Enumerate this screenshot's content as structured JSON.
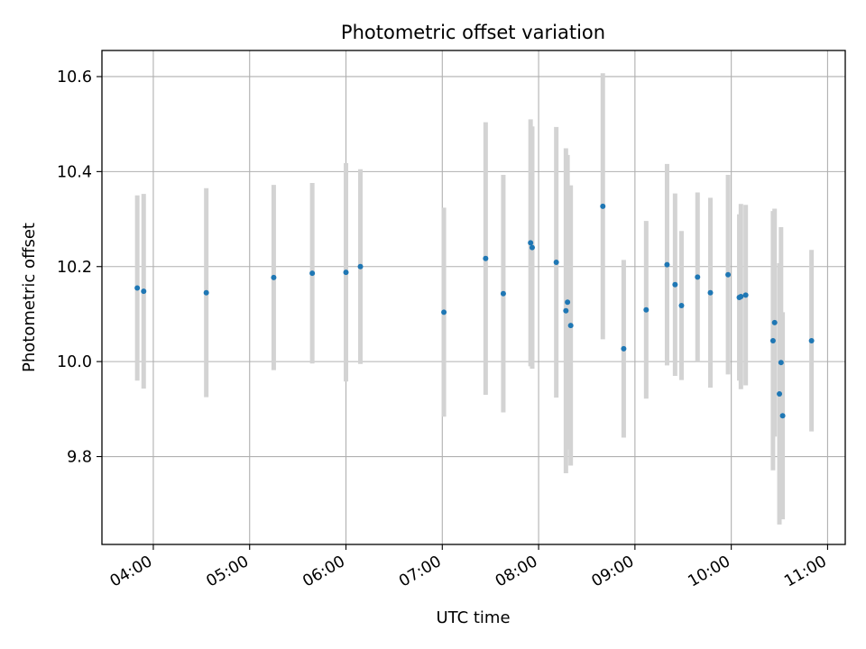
{
  "chart_data": {
    "type": "scatter",
    "title": "Photometric offset variation",
    "xlabel": "UTC time",
    "ylabel": "Photometric offset",
    "x_ticks": [
      "04:00",
      "05:00",
      "06:00",
      "07:00",
      "08:00",
      "09:00",
      "10:00",
      "11:00"
    ],
    "y_ticks": [
      "9.8",
      "10.0",
      "10.2",
      "10.4",
      "10.6"
    ],
    "xlim": [
      "03:28",
      "11:11"
    ],
    "ylim": [
      9.615,
      10.655
    ],
    "grid": true,
    "marker_color": "#1f77b4",
    "errorbar_color": "#d3d3d3",
    "points": [
      {
        "x": "03:50",
        "y": 10.155,
        "err": 0.195
      },
      {
        "x": "03:54",
        "y": 10.148,
        "err": 0.205
      },
      {
        "x": "04:33",
        "y": 10.145,
        "err": 0.22
      },
      {
        "x": "05:15",
        "y": 10.177,
        "err": 0.195
      },
      {
        "x": "05:39",
        "y": 10.186,
        "err": 0.19
      },
      {
        "x": "06:00",
        "y": 10.188,
        "err": 0.23
      },
      {
        "x": "06:09",
        "y": 10.2,
        "err": 0.205
      },
      {
        "x": "07:01",
        "y": 10.104,
        "err": 0.22
      },
      {
        "x": "07:27",
        "y": 10.217,
        "err": 0.287
      },
      {
        "x": "07:38",
        "y": 10.143,
        "err": 0.25
      },
      {
        "x": "07:55",
        "y": 10.25,
        "err": 0.26
      },
      {
        "x": "07:56",
        "y": 10.24,
        "err": 0.255
      },
      {
        "x": "08:11",
        "y": 10.209,
        "err": 0.285
      },
      {
        "x": "08:17",
        "y": 10.107,
        "err": 0.342
      },
      {
        "x": "08:18",
        "y": 10.125,
        "err": 0.31
      },
      {
        "x": "08:20",
        "y": 10.076,
        "err": 0.295
      },
      {
        "x": "08:40",
        "y": 10.327,
        "err": 0.28
      },
      {
        "x": "08:53",
        "y": 10.027,
        "err": 0.187
      },
      {
        "x": "09:07",
        "y": 10.109,
        "err": 0.187
      },
      {
        "x": "09:20",
        "y": 10.204,
        "err": 0.212
      },
      {
        "x": "09:25",
        "y": 10.162,
        "err": 0.192
      },
      {
        "x": "09:29",
        "y": 10.118,
        "err": 0.157
      },
      {
        "x": "09:39",
        "y": 10.178,
        "err": 0.178
      },
      {
        "x": "09:47",
        "y": 10.145,
        "err": 0.2
      },
      {
        "x": "09:58",
        "y": 10.183,
        "err": 0.21
      },
      {
        "x": "10:05",
        "y": 10.135,
        "err": 0.175
      },
      {
        "x": "10:06",
        "y": 10.137,
        "err": 0.195
      },
      {
        "x": "10:09",
        "y": 10.14,
        "err": 0.19
      },
      {
        "x": "10:26",
        "y": 10.044,
        "err": 0.273
      },
      {
        "x": "10:27",
        "y": 10.082,
        "err": 0.24
      },
      {
        "x": "10:30",
        "y": 9.932,
        "err": 0.275
      },
      {
        "x": "10:31",
        "y": 9.998,
        "err": 0.285
      },
      {
        "x": "10:32",
        "y": 9.886,
        "err": 0.218
      },
      {
        "x": "10:50",
        "y": 10.044,
        "err": 0.191
      }
    ]
  }
}
